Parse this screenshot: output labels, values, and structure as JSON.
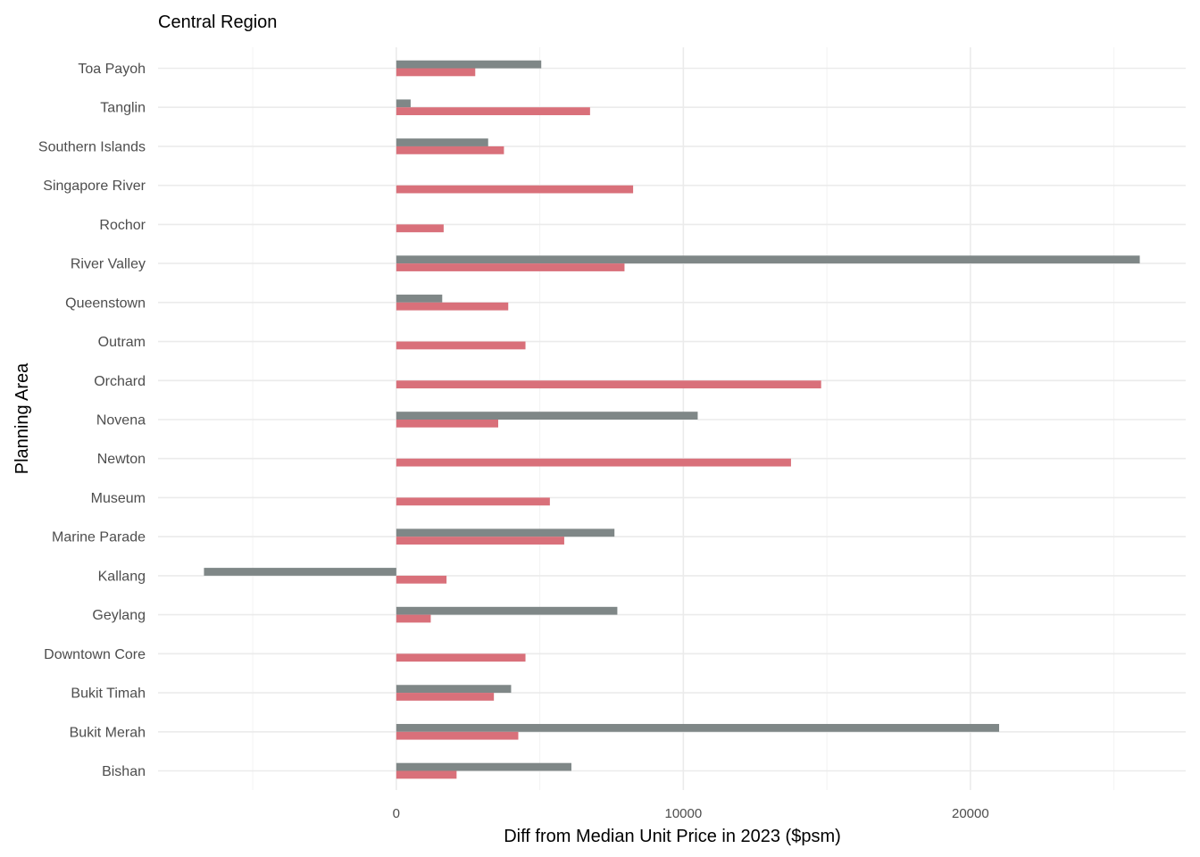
{
  "chart_data": {
    "type": "bar",
    "orientation": "horizontal",
    "title": "Central Region",
    "xlabel": "Diff from Median Unit Price in 2023 ($psm)",
    "ylabel": "Planning Area",
    "xlim": [
      -8300,
      27500
    ],
    "x_ticks": [
      0,
      10000,
      20000
    ],
    "x_tick_labels": [
      "0",
      "10000",
      "20000"
    ],
    "grid": true,
    "legend": "none",
    "categories": [
      "Bishan",
      "Bukit Merah",
      "Bukit Timah",
      "Downtown Core",
      "Geylang",
      "Kallang",
      "Marine Parade",
      "Museum",
      "Newton",
      "Novena",
      "Orchard",
      "Outram",
      "Queenstown",
      "River Valley",
      "Rochor",
      "Singapore River",
      "Southern Islands",
      "Tanglin",
      "Toa Payoh"
    ],
    "series": [
      {
        "color": "#7f8787",
        "values": [
          6100,
          21000,
          4000,
          null,
          7700,
          -6700,
          7600,
          null,
          null,
          10500,
          null,
          null,
          1600,
          25900,
          null,
          null,
          3200,
          500,
          5050
        ]
      },
      {
        "color": "#d9707a",
        "values": [
          2100,
          4250,
          3400,
          4500,
          1200,
          1750,
          5850,
          5350,
          13750,
          3550,
          14800,
          4500,
          3900,
          7950,
          1650,
          8250,
          3750,
          6750,
          2750
        ]
      }
    ]
  }
}
